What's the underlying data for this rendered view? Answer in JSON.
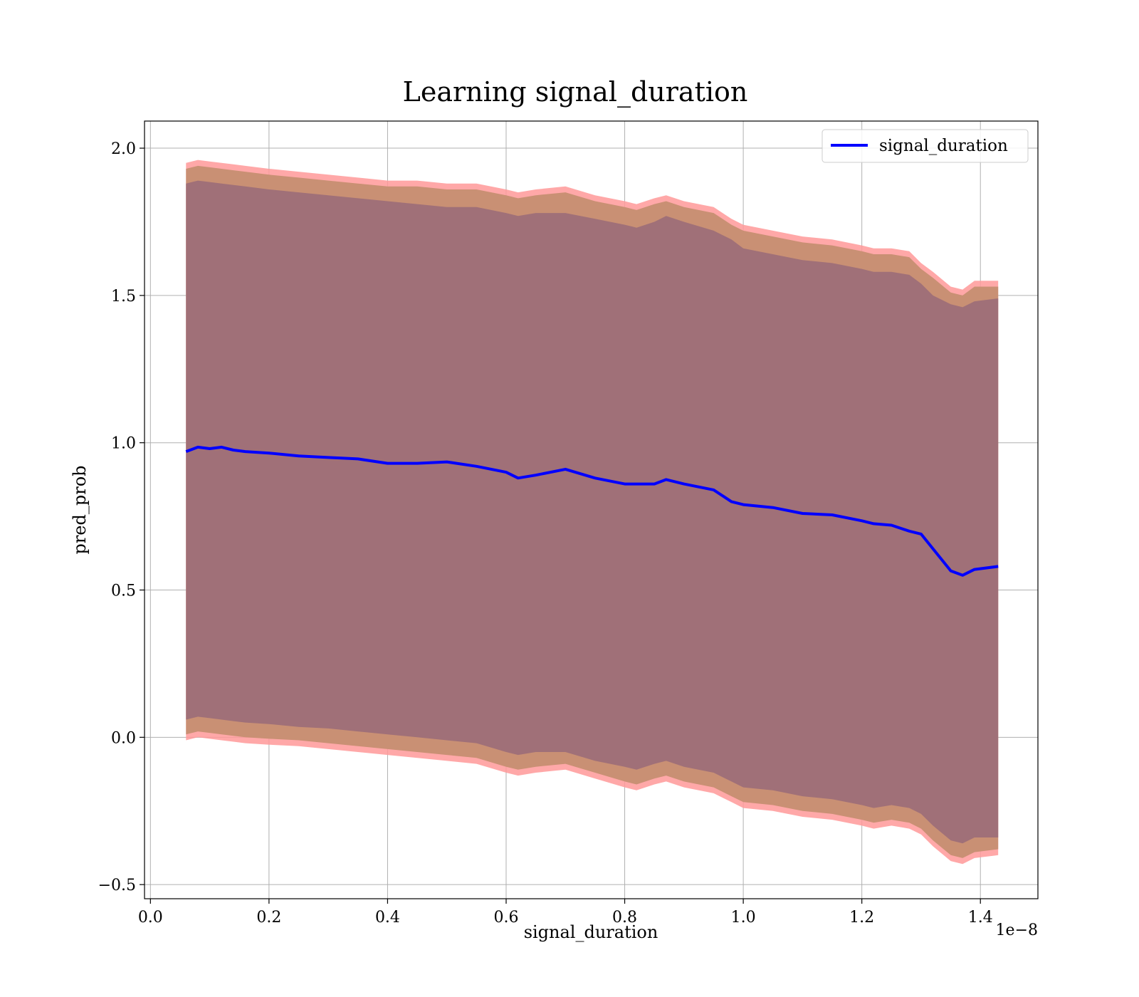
{
  "chart_data": {
    "type": "line",
    "title": "Learning signal_duration",
    "xlabel": "signal_duration",
    "ylabel": "pred_prob",
    "x_offset_label": "1e−8",
    "x_tick_labels": [
      "0.0",
      "0.2",
      "0.4",
      "0.6",
      "0.8",
      "1.0",
      "1.2",
      "1.4"
    ],
    "y_tick_labels": [
      "−0.5",
      "0.0",
      "0.5",
      "1.0",
      "1.5",
      "2.0"
    ],
    "x_ticks": [
      0.0,
      0.2,
      0.4,
      0.6,
      0.8,
      1.0,
      1.2,
      1.4
    ],
    "y_ticks": [
      -0.5,
      0.0,
      0.5,
      1.0,
      1.5,
      2.0
    ],
    "xlim": [
      -0.01,
      1.497
    ],
    "ylim": [
      -0.548,
      2.092
    ],
    "grid": true,
    "legend_position": "upper right",
    "colors": {
      "line": "#0000ff",
      "outer_band": "#ff9999",
      "middle_band": "#c99074",
      "inner_band": "#a07078",
      "grid": "#b0b0b0"
    },
    "series": [
      {
        "name": "signal_duration",
        "x": [
          0.06,
          0.08,
          0.1,
          0.12,
          0.14,
          0.16,
          0.2,
          0.25,
          0.3,
          0.35,
          0.4,
          0.45,
          0.5,
          0.55,
          0.6,
          0.62,
          0.65,
          0.7,
          0.75,
          0.8,
          0.82,
          0.85,
          0.87,
          0.9,
          0.95,
          0.98,
          1.0,
          1.05,
          1.1,
          1.15,
          1.2,
          1.22,
          1.25,
          1.28,
          1.3,
          1.32,
          1.35,
          1.37,
          1.39,
          1.43
        ],
        "y": [
          0.97,
          0.985,
          0.98,
          0.985,
          0.975,
          0.97,
          0.965,
          0.955,
          0.95,
          0.945,
          0.93,
          0.93,
          0.935,
          0.92,
          0.9,
          0.88,
          0.89,
          0.91,
          0.88,
          0.86,
          0.86,
          0.86,
          0.875,
          0.86,
          0.84,
          0.8,
          0.79,
          0.78,
          0.76,
          0.755,
          0.735,
          0.725,
          0.72,
          0.7,
          0.69,
          0.64,
          0.565,
          0.55,
          0.57,
          0.58
        ]
      }
    ],
    "bands": {
      "inner_upper": [
        1.88,
        1.89,
        1.885,
        1.88,
        1.875,
        1.87,
        1.86,
        1.85,
        1.84,
        1.83,
        1.82,
        1.81,
        1.8,
        1.8,
        1.78,
        1.77,
        1.78,
        1.78,
        1.76,
        1.74,
        1.73,
        1.75,
        1.77,
        1.75,
        1.72,
        1.69,
        1.66,
        1.64,
        1.62,
        1.61,
        1.59,
        1.58,
        1.58,
        1.57,
        1.54,
        1.5,
        1.47,
        1.46,
        1.48,
        1.49
      ],
      "inner_lower": [
        0.06,
        0.07,
        0.065,
        0.06,
        0.055,
        0.05,
        0.045,
        0.035,
        0.03,
        0.02,
        0.01,
        0.0,
        -0.01,
        -0.02,
        -0.05,
        -0.06,
        -0.05,
        -0.05,
        -0.08,
        -0.1,
        -0.11,
        -0.09,
        -0.08,
        -0.1,
        -0.12,
        -0.15,
        -0.17,
        -0.18,
        -0.2,
        -0.21,
        -0.23,
        -0.24,
        -0.23,
        -0.24,
        -0.26,
        -0.3,
        -0.35,
        -0.36,
        -0.34,
        -0.34
      ],
      "outer_upper": [
        1.95,
        1.96,
        1.955,
        1.95,
        1.945,
        1.94,
        1.93,
        1.92,
        1.91,
        1.9,
        1.89,
        1.89,
        1.88,
        1.88,
        1.86,
        1.85,
        1.86,
        1.87,
        1.84,
        1.82,
        1.81,
        1.83,
        1.84,
        1.82,
        1.8,
        1.76,
        1.74,
        1.72,
        1.7,
        1.69,
        1.67,
        1.66,
        1.66,
        1.65,
        1.61,
        1.58,
        1.53,
        1.52,
        1.55,
        1.55
      ],
      "outer_lower": [
        -0.01,
        0.0,
        -0.005,
        -0.01,
        -0.015,
        -0.02,
        -0.025,
        -0.03,
        -0.04,
        -0.05,
        -0.06,
        -0.07,
        -0.08,
        -0.09,
        -0.12,
        -0.13,
        -0.12,
        -0.11,
        -0.14,
        -0.17,
        -0.18,
        -0.16,
        -0.15,
        -0.17,
        -0.19,
        -0.22,
        -0.24,
        -0.25,
        -0.27,
        -0.28,
        -0.3,
        -0.31,
        -0.3,
        -0.31,
        -0.33,
        -0.37,
        -0.42,
        -0.43,
        -0.41,
        -0.4
      ]
    }
  }
}
